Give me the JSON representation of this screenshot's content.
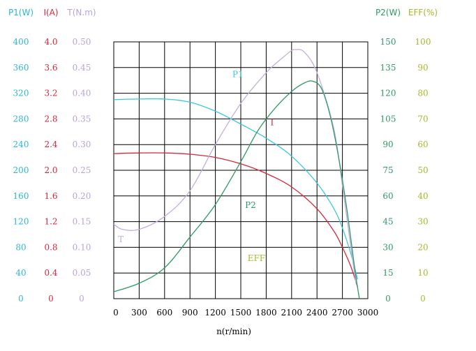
{
  "chart_data": {
    "type": "line",
    "x": [
      0,
      300,
      600,
      900,
      1200,
      1500,
      1800,
      2100,
      2400,
      2700,
      3000
    ],
    "xlabel": "n(r/min)",
    "xlim": [
      0,
      3000
    ],
    "x_ticks": [
      "0",
      "300",
      "600",
      "900",
      "1200",
      "1500",
      "1800",
      "2100",
      "2400",
      "2700",
      "3000"
    ],
    "grid": true,
    "left_axes": [
      {
        "key": "P1",
        "header": "P1(W)",
        "color": "#2ab7d6",
        "ticks": [
          "400",
          "360",
          "320",
          "280",
          "240",
          "200",
          "160",
          "120",
          "80",
          "40",
          "0"
        ],
        "tick_values": [
          400,
          360,
          320,
          280,
          240,
          200,
          160,
          120,
          80,
          40,
          0
        ],
        "range": [
          0,
          400
        ]
      },
      {
        "key": "I",
        "header": "I(A)",
        "color": "#d7263a",
        "ticks": [
          "4.0",
          "3.6",
          "3.2",
          "2.8",
          "2.4",
          "2.0",
          "1.6",
          "1.2",
          "0.8",
          "0.4",
          "0"
        ],
        "tick_values": [
          4.0,
          3.6,
          3.2,
          2.8,
          2.4,
          2.0,
          1.6,
          1.2,
          0.8,
          0.4,
          0
        ],
        "range": [
          0,
          4.0
        ]
      },
      {
        "key": "T",
        "header": "T(N.m)",
        "color": "#b9a2d8",
        "ticks": [
          "0.50",
          "0.45",
          "0.40",
          "0.35",
          "0.30",
          "0.25",
          "0.20",
          "0.15",
          "0.10",
          "0.05",
          "0"
        ],
        "tick_values": [
          0.5,
          0.45,
          0.4,
          0.35,
          0.3,
          0.25,
          0.2,
          0.15,
          0.1,
          0.05,
          0
        ],
        "range": [
          0,
          0.5
        ]
      }
    ],
    "right_axes": [
      {
        "key": "P2",
        "header": "P2(W)",
        "color": "#2e9a63",
        "ticks": [
          "150",
          "135",
          "120",
          "105",
          "90",
          "75",
          "60",
          "45",
          "30",
          "15",
          "0"
        ],
        "tick_values": [
          150,
          135,
          120,
          105,
          90,
          75,
          60,
          45,
          30,
          15,
          0
        ],
        "range": [
          0,
          150
        ]
      },
      {
        "key": "EFF",
        "header": "EFF(%)",
        "color": "#a7b82a",
        "ticks": [
          "100",
          "90",
          "80",
          "70",
          "60",
          "50",
          "40",
          "30",
          "20",
          "10",
          "0"
        ],
        "tick_values": [
          100,
          90,
          80,
          70,
          60,
          50,
          40,
          30,
          20,
          10,
          0
        ],
        "range": [
          0,
          100
        ]
      }
    ],
    "series": [
      {
        "name": "P1",
        "axis": "P1",
        "color": "#3cc6e0",
        "x": [
          0,
          300,
          600,
          900,
          1200,
          1500,
          1800,
          2100,
          2400,
          2600,
          2700,
          2800,
          2880
        ],
        "y": [
          310,
          311,
          311,
          306,
          292,
          272,
          250,
          222,
          180,
          140,
          110,
          70,
          30
        ]
      },
      {
        "name": "I",
        "axis": "I",
        "color": "#d7263a",
        "x": [
          0,
          300,
          600,
          900,
          1200,
          1500,
          1800,
          2100,
          2400,
          2600,
          2700,
          2800,
          2880
        ],
        "y": [
          2.26,
          2.27,
          2.27,
          2.25,
          2.2,
          2.1,
          1.95,
          1.74,
          1.4,
          1.05,
          0.8,
          0.5,
          0.18
        ]
      },
      {
        "name": "T",
        "axis": "T",
        "color": "#c3aee0",
        "x": [
          0,
          100,
          300,
          600,
          900,
          1200,
          1500,
          1800,
          2000,
          2100,
          2150,
          2250,
          2400,
          2600,
          2700,
          2800,
          2860
        ],
        "y": [
          0.145,
          0.135,
          0.135,
          0.16,
          0.21,
          0.3,
          0.38,
          0.44,
          0.47,
          0.483,
          0.485,
          0.48,
          0.44,
          0.33,
          0.22,
          0.1,
          0.03
        ]
      },
      {
        "name": "P2",
        "axis": "P2",
        "color": "#2e9a63",
        "x": [
          0,
          300,
          600,
          900,
          1200,
          1500,
          1700,
          1900,
          2100,
          2250,
          2350,
          2450,
          2550,
          2650,
          2750,
          2850,
          2900
        ],
        "y": [
          4,
          9,
          18,
          36,
          55,
          80,
          98,
          111,
          121,
          126,
          127,
          123,
          108,
          84,
          53,
          16,
          0
        ]
      },
      {
        "name": "EFF",
        "axis": "EFF",
        "color": "#a7b82a",
        "x": [],
        "y": []
      }
    ],
    "annotations": [
      {
        "text": "P1",
        "series": "P1",
        "x": 1400,
        "y_axis": "P1",
        "y": 345
      },
      {
        "text": "I",
        "series": "I",
        "x": 1850,
        "y_axis": "I",
        "y": 2.7
      },
      {
        "text": "T",
        "series": "T",
        "x": 50,
        "y_axis": "T",
        "y": 0.11
      },
      {
        "text": "P2",
        "series": "P2",
        "x": 1550,
        "y_axis": "P2",
        "y": 53
      },
      {
        "text": "EFF",
        "series": "EFF",
        "x": 1580,
        "y_axis": "P2",
        "y": 22
      }
    ]
  }
}
